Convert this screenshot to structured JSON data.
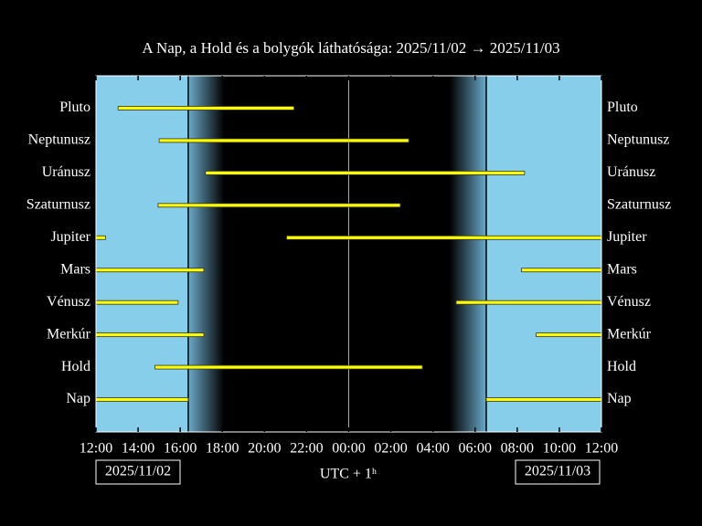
{
  "chart_data": {
    "type": "visibility",
    "title": "A Nap, a Hold és a bolygók láthatósága: 2025/11/02 → 2025/11/03",
    "xlabel": "UTC + 1ʰ",
    "dates": [
      "2025/11/02",
      "2025/11/03"
    ],
    "xlim": [
      12,
      36
    ],
    "xticks": [
      {
        "value": 12,
        "label": "12:00"
      },
      {
        "value": 14,
        "label": "14:00"
      },
      {
        "value": 16,
        "label": "16:00"
      },
      {
        "value": 18,
        "label": "18:00"
      },
      {
        "value": 20,
        "label": "20:00"
      },
      {
        "value": 22,
        "label": "22:00"
      },
      {
        "value": 24,
        "label": "00:00"
      },
      {
        "value": 26,
        "label": "02:00"
      },
      {
        "value": 28,
        "label": "04:00"
      },
      {
        "value": 30,
        "label": "06:00"
      },
      {
        "value": 32,
        "label": "08:00"
      },
      {
        "value": 34,
        "label": "10:00"
      },
      {
        "value": 36,
        "label": "12:00"
      }
    ],
    "daylight": [
      [
        12,
        16.38
      ],
      [
        30.53,
        36
      ]
    ],
    "twilight": [
      [
        16.38,
        18.1
      ],
      [
        28.8,
        30.53
      ]
    ],
    "midnight": 24,
    "color": "#ffff00",
    "day_color": "#87ceeb",
    "series": [
      {
        "name": "Pluto",
        "segments": [
          [
            13.05,
            21.4
          ]
        ]
      },
      {
        "name": "Neptunusz",
        "segments": [
          [
            15.0,
            26.85
          ]
        ]
      },
      {
        "name": "Uránusz",
        "segments": [
          [
            17.2,
            32.35
          ]
        ]
      },
      {
        "name": "Szaturnusz",
        "segments": [
          [
            14.95,
            26.45
          ]
        ]
      },
      {
        "name": "Jupiter",
        "segments": [
          [
            12,
            12.45
          ],
          [
            21.05,
            36
          ]
        ]
      },
      {
        "name": "Mars",
        "segments": [
          [
            12,
            17.12
          ],
          [
            32.2,
            36
          ]
        ]
      },
      {
        "name": "Vénusz",
        "segments": [
          [
            12,
            15.9
          ],
          [
            29.1,
            36
          ]
        ]
      },
      {
        "name": "Merkúr",
        "segments": [
          [
            12,
            17.12
          ],
          [
            32.9,
            36
          ]
        ]
      },
      {
        "name": "Hold",
        "segments": [
          [
            14.8,
            27.5
          ]
        ]
      },
      {
        "name": "Nap",
        "segments": [
          [
            12,
            16.38
          ],
          [
            30.53,
            36
          ]
        ]
      }
    ]
  }
}
